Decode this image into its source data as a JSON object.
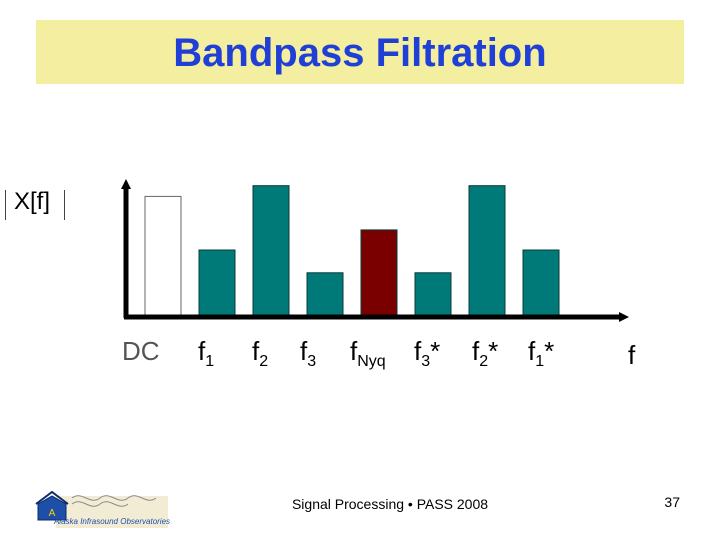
{
  "title": "Bandpass Filtration",
  "ylabel": "X[f]",
  "xlabel": "f",
  "footer": "Signal Processing • PASS 2008",
  "page_number": "37",
  "logo_text": "Alaska Infrasound Observatories",
  "colors": {
    "title": "#1f3fd6",
    "title_band": "#f4eea0",
    "dc": "#ffffff",
    "pass": "#007a78",
    "nyquist": "#7a0000",
    "axis": "#000000"
  },
  "chart_data": {
    "type": "bar",
    "categories": [
      {
        "base": "DC",
        "sub": "",
        "suffix": ""
      },
      {
        "base": "f",
        "sub": "1",
        "suffix": ""
      },
      {
        "base": "f",
        "sub": "2",
        "suffix": ""
      },
      {
        "base": "f",
        "sub": "3",
        "suffix": ""
      },
      {
        "base": "f",
        "sub": "Nyq",
        "suffix": ""
      },
      {
        "base": "f",
        "sub": "3",
        "suffix": "*"
      },
      {
        "base": "f",
        "sub": "2",
        "suffix": "*"
      },
      {
        "base": "f",
        "sub": "1",
        "suffix": "*"
      }
    ],
    "values": [
      0.9,
      0.5,
      0.98,
      0.33,
      0.65,
      0.33,
      0.98,
      0.5
    ],
    "bar_styles": [
      "dc",
      "pass",
      "pass",
      "pass",
      "nyquist",
      "pass",
      "pass",
      "pass"
    ],
    "ylim": [
      0,
      1
    ],
    "grid": false,
    "legend": "none"
  }
}
